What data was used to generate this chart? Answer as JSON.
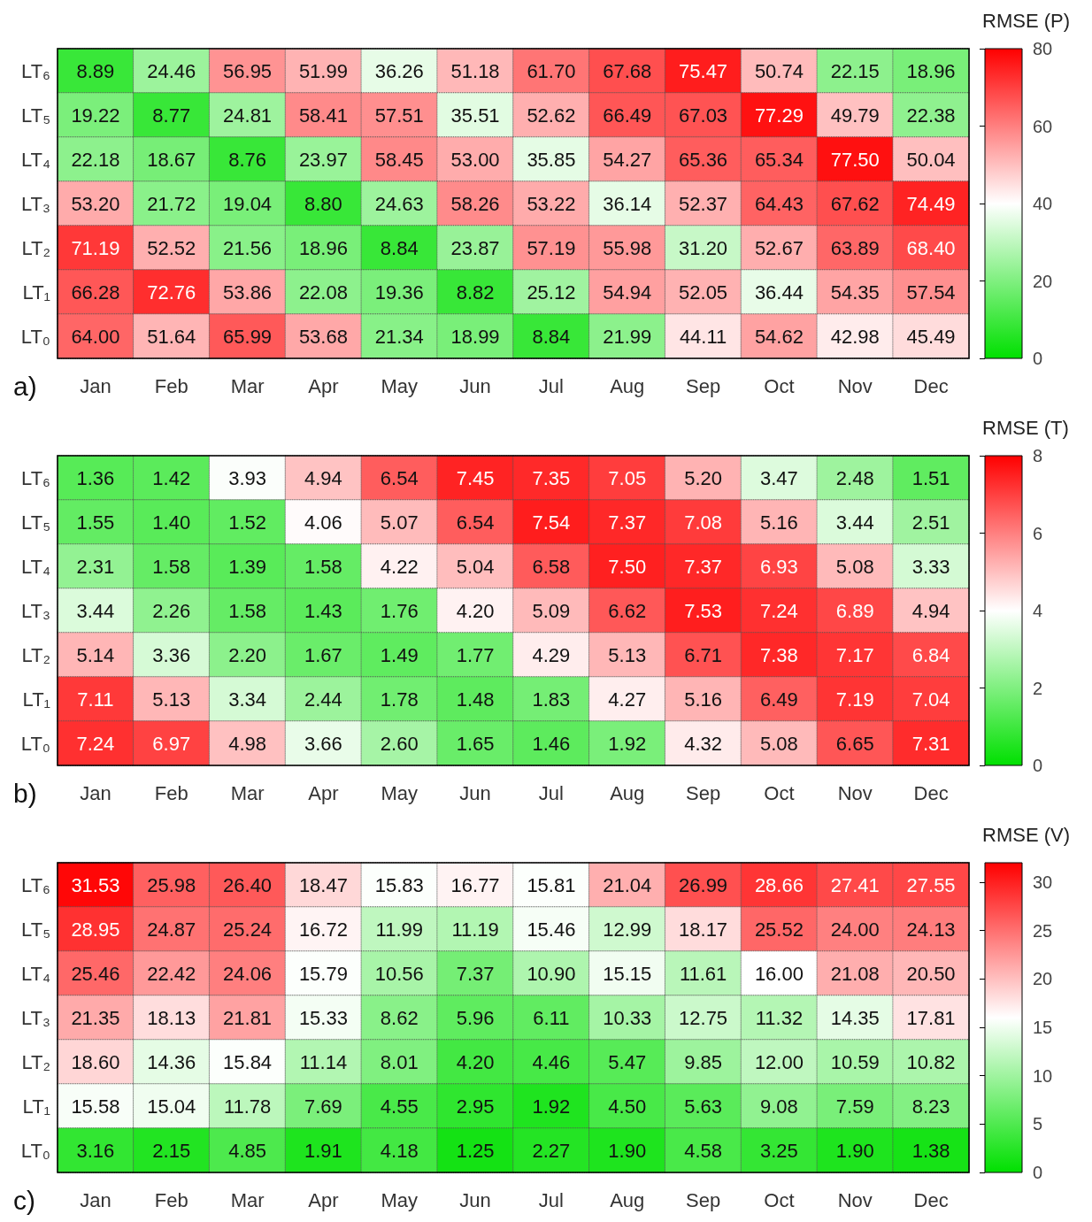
{
  "chart_data": [
    {
      "type": "heatmap",
      "clabel": "RMSE (P)",
      "annotations": [
        "a)"
      ],
      "data_labels": true,
      "clim": [
        0,
        80
      ],
      "cticks": [
        0,
        20,
        40,
        60,
        80
      ],
      "categories": [
        "Jan",
        "Feb",
        "Mar",
        "Apr",
        "May",
        "Jun",
        "Jul",
        "Aug",
        "Sep",
        "Oct",
        "Nov",
        "Dec"
      ],
      "y_categories": [
        "LT₆",
        "LT₅",
        "LT₄",
        "LT₃",
        "LT₂",
        "LT₁",
        "LT₀"
      ],
      "cells": [
        [
          8.89,
          24.46,
          56.95,
          51.99,
          36.26,
          51.18,
          61.7,
          67.68,
          75.47,
          50.74,
          22.15,
          18.96
        ],
        [
          19.22,
          8.77,
          24.81,
          58.41,
          57.51,
          35.51,
          52.62,
          66.49,
          67.03,
          77.29,
          49.79,
          22.38
        ],
        [
          22.18,
          18.67,
          8.76,
          23.97,
          58.45,
          53.0,
          35.85,
          54.27,
          65.36,
          65.34,
          77.5,
          50.04
        ],
        [
          53.2,
          21.72,
          19.04,
          8.8,
          24.63,
          58.26,
          53.22,
          36.14,
          52.37,
          64.43,
          67.62,
          74.49
        ],
        [
          71.19,
          52.52,
          21.56,
          18.96,
          8.84,
          23.87,
          57.19,
          55.98,
          31.2,
          52.67,
          63.89,
          68.4
        ],
        [
          66.28,
          72.76,
          53.86,
          22.08,
          19.36,
          8.82,
          25.12,
          54.94,
          52.05,
          36.44,
          54.35,
          57.54
        ],
        [
          64.0,
          51.64,
          65.99,
          53.68,
          21.34,
          18.99,
          8.84,
          21.99,
          44.11,
          54.62,
          42.98,
          45.49
        ]
      ],
      "cell_labels": [
        [
          "8.89",
          "24.46",
          "56.95",
          "51.99",
          "36.26",
          "51.18",
          "61.70",
          "67.68",
          "75.47",
          "50.74",
          "22.15",
          "18.96"
        ],
        [
          "19.22",
          "8.77",
          "24.81",
          "58.41",
          "57.51",
          "35.51",
          "52.62",
          "66.49",
          "67.03",
          "77.29",
          "49.79",
          "22.38"
        ],
        [
          "22.18",
          "18.67",
          "8.76",
          "23.97",
          "58.45",
          "53.00",
          "35.85",
          "54.27",
          "65.36",
          "65.34",
          "77.50",
          "50.04"
        ],
        [
          "53.20",
          "21.72",
          "19.04",
          "8.80",
          "24.63",
          "58.26",
          "53.22",
          "36.14",
          "52.37",
          "64.43",
          "67.62",
          "74.49"
        ],
        [
          "71.19",
          "52.52",
          "21.56",
          "18.96",
          "8.84",
          "23.87",
          "57.19",
          "55.98",
          "31.20",
          "52.67",
          "63.89",
          "68.40"
        ],
        [
          "66.28",
          "72.76",
          "53.86",
          "22.08",
          "19.36",
          "8.82",
          "25.12",
          "54.94",
          "52.05",
          "36.44",
          "54.35",
          "57.54"
        ],
        [
          "64.00",
          "51.64",
          "65.99",
          "53.68",
          "21.34",
          "18.99",
          "8.84",
          "21.99",
          "44.11",
          "54.62",
          "42.98",
          "45.49"
        ]
      ]
    },
    {
      "type": "heatmap",
      "clabel": "RMSE (T)",
      "annotations": [
        "b)"
      ],
      "data_labels": true,
      "clim": [
        0,
        8
      ],
      "cticks": [
        0,
        2,
        4,
        6,
        8
      ],
      "categories": [
        "Jan",
        "Feb",
        "Mar",
        "Apr",
        "May",
        "Jun",
        "Jul",
        "Aug",
        "Sep",
        "Oct",
        "Nov",
        "Dec"
      ],
      "y_categories": [
        "LT₆",
        "LT₅",
        "LT₄",
        "LT₃",
        "LT₂",
        "LT₁",
        "LT₀"
      ],
      "cells": [
        [
          1.36,
          1.42,
          3.93,
          4.94,
          6.54,
          7.45,
          7.35,
          7.05,
          5.2,
          3.47,
          2.48,
          1.51
        ],
        [
          1.55,
          1.4,
          1.52,
          4.06,
          5.07,
          6.54,
          7.54,
          7.37,
          7.08,
          5.16,
          3.44,
          2.51
        ],
        [
          2.31,
          1.58,
          1.39,
          1.58,
          4.22,
          5.04,
          6.58,
          7.5,
          7.37,
          6.93,
          5.08,
          3.33
        ],
        [
          3.44,
          2.26,
          1.58,
          1.43,
          1.76,
          4.2,
          5.09,
          6.62,
          7.53,
          7.24,
          6.89,
          4.94
        ],
        [
          5.14,
          3.36,
          2.2,
          1.67,
          1.49,
          1.77,
          4.29,
          5.13,
          6.71,
          7.38,
          7.17,
          6.84
        ],
        [
          7.11,
          5.13,
          3.34,
          2.44,
          1.78,
          1.48,
          1.83,
          4.27,
          5.16,
          6.49,
          7.19,
          7.04
        ],
        [
          7.24,
          6.97,
          4.98,
          3.66,
          2.6,
          1.65,
          1.46,
          1.92,
          4.32,
          5.08,
          6.65,
          7.31
        ]
      ],
      "cell_labels": [
        [
          "1.36",
          "1.42",
          "3.93",
          "4.94",
          "6.54",
          "7.45",
          "7.35",
          "7.05",
          "5.20",
          "3.47",
          "2.48",
          "1.51"
        ],
        [
          "1.55",
          "1.40",
          "1.52",
          "4.06",
          "5.07",
          "6.54",
          "7.54",
          "7.37",
          "7.08",
          "5.16",
          "3.44",
          "2.51"
        ],
        [
          "2.31",
          "1.58",
          "1.39",
          "1.58",
          "4.22",
          "5.04",
          "6.58",
          "7.50",
          "7.37",
          "6.93",
          "5.08",
          "3.33"
        ],
        [
          "3.44",
          "2.26",
          "1.58",
          "1.43",
          "1.76",
          "4.20",
          "5.09",
          "6.62",
          "7.53",
          "7.24",
          "6.89",
          "4.94"
        ],
        [
          "5.14",
          "3.36",
          "2.20",
          "1.67",
          "1.49",
          "1.77",
          "4.29",
          "5.13",
          "6.71",
          "7.38",
          "7.17",
          "6.84"
        ],
        [
          "7.11",
          "5.13",
          "3.34",
          "2.44",
          "1.78",
          "1.48",
          "1.83",
          "4.27",
          "5.16",
          "6.49",
          "7.19",
          "7.04"
        ],
        [
          "7.24",
          "6.97",
          "4.98",
          "3.66",
          "2.60",
          "1.65",
          "1.46",
          "1.92",
          "4.32",
          "5.08",
          "6.65",
          "7.31"
        ]
      ]
    },
    {
      "type": "heatmap",
      "clabel": "RMSE (V)",
      "annotations": [
        "c)"
      ],
      "data_labels": true,
      "clim": [
        0,
        32
      ],
      "cticks": [
        0,
        5,
        10,
        15,
        20,
        25,
        30
      ],
      "categories": [
        "Jan",
        "Feb",
        "Mar",
        "Apr",
        "May",
        "Jun",
        "Jul",
        "Aug",
        "Sep",
        "Oct",
        "Nov",
        "Dec"
      ],
      "y_categories": [
        "LT₆",
        "LT₅",
        "LT₄",
        "LT₃",
        "LT₂",
        "LT₁",
        "LT₀"
      ],
      "cells": [
        [
          31.53,
          25.98,
          26.4,
          18.47,
          15.83,
          16.77,
          15.81,
          21.04,
          26.99,
          28.66,
          27.41,
          27.55
        ],
        [
          28.95,
          24.87,
          25.24,
          16.72,
          11.99,
          11.19,
          15.46,
          12.99,
          18.17,
          25.52,
          24.0,
          24.13
        ],
        [
          25.46,
          22.42,
          24.06,
          15.79,
          10.56,
          7.37,
          10.9,
          15.15,
          11.61,
          16.0,
          21.08,
          20.5
        ],
        [
          21.35,
          18.13,
          21.81,
          15.33,
          8.62,
          5.96,
          6.11,
          10.33,
          12.75,
          11.32,
          14.35,
          17.81
        ],
        [
          18.6,
          14.36,
          15.84,
          11.14,
          8.01,
          4.2,
          4.46,
          5.47,
          9.85,
          12.0,
          10.59,
          10.82
        ],
        [
          15.58,
          15.04,
          11.78,
          7.69,
          4.55,
          2.95,
          1.92,
          4.5,
          5.63,
          9.08,
          7.59,
          8.23
        ],
        [
          3.16,
          2.15,
          4.85,
          1.91,
          4.18,
          1.25,
          2.27,
          1.9,
          4.58,
          3.25,
          1.9,
          1.38
        ]
      ],
      "cell_labels": [
        [
          "31.53",
          "25.98",
          "26.40",
          "18.47",
          "15.83",
          "16.77",
          "15.81",
          "21.04",
          "26.99",
          "28.66",
          "27.41",
          "27.55"
        ],
        [
          "28.95",
          "24.87",
          "25.24",
          "16.72",
          "11.99",
          "11.19",
          "15.46",
          "12.99",
          "18.17",
          "25.52",
          "24.00",
          "24.13"
        ],
        [
          "25.46",
          "22.42",
          "24.06",
          "15.79",
          "10.56",
          "7.37",
          "10.90",
          "15.15",
          "11.61",
          "16.00",
          "21.08",
          "20.50"
        ],
        [
          "21.35",
          "18.13",
          "21.81",
          "15.33",
          "8.62",
          "5.96",
          "6.11",
          "10.33",
          "12.75",
          "11.32",
          "14.35",
          "17.81"
        ],
        [
          "18.60",
          "14.36",
          "15.84",
          "11.14",
          "8.01",
          "4.20",
          "4.46",
          "5.47",
          "9.85",
          "12.00",
          "10.59",
          "10.82"
        ],
        [
          "15.58",
          "15.04",
          "11.78",
          "7.69",
          "4.55",
          "2.95",
          "1.92",
          "4.50",
          "5.63",
          "9.08",
          "7.59",
          "8.23"
        ],
        [
          "3.16",
          "2.15",
          "4.85",
          "1.91",
          "4.18",
          "1.25",
          "2.27",
          "1.90",
          "4.58",
          "3.25",
          "1.90",
          "1.38"
        ]
      ]
    }
  ]
}
